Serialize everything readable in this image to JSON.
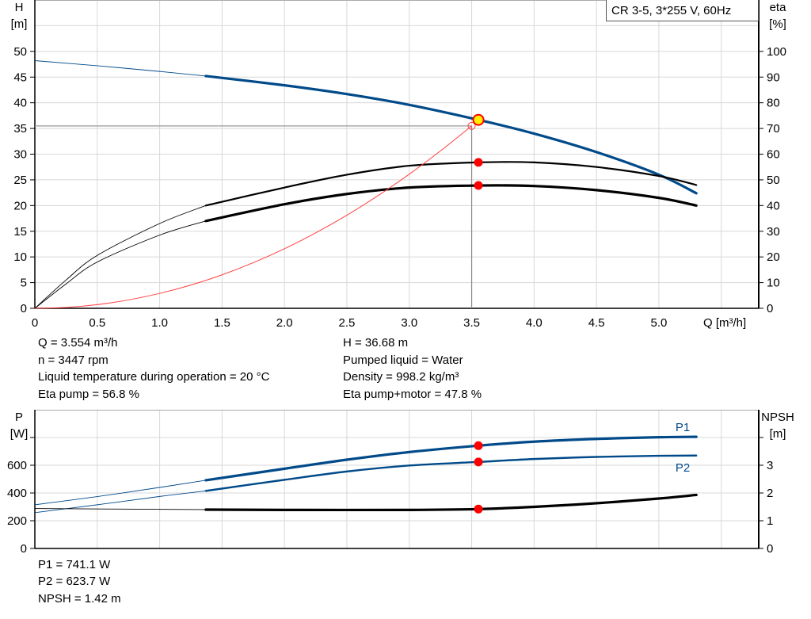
{
  "title": "CR 3-5, 3*255 V, 60Hz",
  "colors": {
    "head": "#004a8a",
    "eta": "#000000",
    "system": "#ff4040",
    "duty_point": "#ff0000",
    "duty_highlight": "#ffee00",
    "grid": "#d8d8d8",
    "power": "#004a8a"
  },
  "chart_data": [
    {
      "type": "line",
      "xlabel": "Q [m³/h]",
      "ylabel_left": [
        "H",
        "[m]"
      ],
      "ylabel_right": [
        "eta",
        "[%]"
      ],
      "xlim": [
        0,
        5.8
      ],
      "ylim_left": [
        0,
        60
      ],
      "ylim_right": [
        0,
        120
      ],
      "x_ticks": [
        "0",
        "0.5",
        "1.0",
        "1.5",
        "2.0",
        "2.5",
        "3.0",
        "3.5",
        "4.0",
        "4.5",
        "5.0"
      ],
      "y_ticks_left": [
        "0",
        "5",
        "10",
        "15",
        "20",
        "25",
        "30",
        "35",
        "40",
        "45",
        "50"
      ],
      "y_ticks_right": [
        "0",
        "10",
        "20",
        "30",
        "40",
        "50",
        "60",
        "70",
        "80",
        "90",
        "100"
      ],
      "grid": true,
      "series": [
        {
          "id": "head",
          "axis": "left",
          "color": "#004a8a",
          "thick_from": 1.37,
          "x": [
            0,
            0.5,
            1.0,
            1.37,
            2.0,
            2.5,
            3.0,
            3.554,
            4.0,
            4.5,
            5.0,
            5.3
          ],
          "y": [
            48.2,
            47.2,
            46.1,
            45.2,
            43.4,
            41.7,
            39.6,
            36.68,
            34.0,
            30.4,
            26.0,
            22.4
          ]
        },
        {
          "id": "eta-pump",
          "axis": "right",
          "color": "#000000",
          "thick_from": 1.37,
          "thin": true,
          "x": [
            0,
            0.25,
            0.5,
            1.0,
            1.37,
            2.0,
            2.5,
            3.0,
            3.554,
            4.0,
            4.5,
            5.0,
            5.3
          ],
          "y": [
            0,
            11,
            20.6,
            33,
            40,
            47,
            52,
            55.5,
            56.8,
            56.8,
            55,
            51.5,
            48
          ]
        },
        {
          "id": "eta-pump-motor",
          "axis": "right",
          "color": "#000000",
          "thick_from": 1.37,
          "x": [
            0,
            0.25,
            0.5,
            1.0,
            1.37,
            2.0,
            2.5,
            3.0,
            3.554,
            4.0,
            4.5,
            5.0,
            5.3
          ],
          "y": [
            0,
            9.5,
            18,
            28.5,
            34,
            40.5,
            44.5,
            47,
            47.8,
            47.6,
            46,
            43,
            40
          ]
        },
        {
          "id": "system-curve",
          "axis": "left",
          "color": "#ff4040",
          "thin_only": true,
          "x": [
            0,
            0.25,
            0.5,
            0.75,
            1.0,
            1.25,
            1.5,
            1.75,
            2.0,
            2.25,
            2.5,
            2.75,
            3.0,
            3.25,
            3.5
          ],
          "y": [
            0,
            0.18,
            0.72,
            1.63,
            2.9,
            4.53,
            6.52,
            8.88,
            11.6,
            14.68,
            18.12,
            21.93,
            26.1,
            30.63,
            35.5
          ]
        }
      ],
      "reference_point": {
        "x": 3.5,
        "y": 35.5
      },
      "duty_points": [
        {
          "x": 3.554,
          "y": 36.68,
          "axis": "left",
          "highlight": true
        },
        {
          "x": 3.554,
          "y": 56.8,
          "axis": "right"
        },
        {
          "x": 3.554,
          "y": 47.8,
          "axis": "right"
        }
      ]
    },
    {
      "type": "line",
      "ylabel_left": [
        "P",
        "[W]"
      ],
      "ylabel_right": [
        "NPSH",
        "[m]"
      ],
      "xlim": [
        0,
        5.8
      ],
      "ylim_left": [
        0,
        1000
      ],
      "ylim_right": [
        0,
        5
      ],
      "y_ticks_left": [
        "0",
        "200",
        "400",
        "600"
      ],
      "y_ticks_right": [
        "0",
        "1",
        "2",
        "3"
      ],
      "grid": true,
      "series": [
        {
          "id": "p1",
          "name": "P1",
          "axis": "left",
          "color": "#004a8a",
          "thick_from": 1.37,
          "label_above": true,
          "x": [
            0,
            0.5,
            1.0,
            1.37,
            2.0,
            2.5,
            3.0,
            3.554,
            4.0,
            4.5,
            5.0,
            5.3
          ],
          "y": [
            315,
            374,
            440,
            492,
            575,
            640,
            695,
            741.1,
            770,
            790,
            802,
            805
          ]
        },
        {
          "id": "p2",
          "name": "P2",
          "axis": "left",
          "color": "#004a8a",
          "thick_from": 1.37,
          "mid": true,
          "x": [
            0,
            0.5,
            1.0,
            1.37,
            2.0,
            2.5,
            3.0,
            3.554,
            4.0,
            4.5,
            5.0,
            5.3
          ],
          "y": [
            258,
            315,
            375,
            415,
            495,
            555,
            598,
            623.7,
            645,
            660,
            668,
            670
          ]
        },
        {
          "id": "npsh",
          "axis": "right",
          "color": "#000000",
          "thick_from": 1.37,
          "x": [
            0,
            1.37,
            2.0,
            3.0,
            3.554,
            4.0,
            4.5,
            5.0,
            5.3
          ],
          "y": [
            1.44,
            1.4,
            1.39,
            1.39,
            1.42,
            1.5,
            1.63,
            1.8,
            1.93
          ]
        }
      ],
      "duty_points": [
        {
          "x": 3.554,
          "y": 741.1,
          "axis": "left"
        },
        {
          "x": 3.554,
          "y": 623.7,
          "axis": "left"
        },
        {
          "x": 3.554,
          "y": 1.42,
          "axis": "right"
        }
      ]
    }
  ],
  "readout_top": {
    "left": [
      "Q = 3.554 m³/h",
      "n = 3447 rpm",
      "Liquid temperature during operation = 20 °C",
      "Eta pump = 56.8 %"
    ],
    "right": [
      "H = 36.68 m",
      "Pumped liquid = Water",
      "Density = 998.2 kg/m³",
      "Eta pump+motor = 47.8 %"
    ]
  },
  "readout_bottom": [
    "P1 = 741.1 W",
    "P2 = 623.7 W",
    "NPSH = 1.42 m"
  ]
}
